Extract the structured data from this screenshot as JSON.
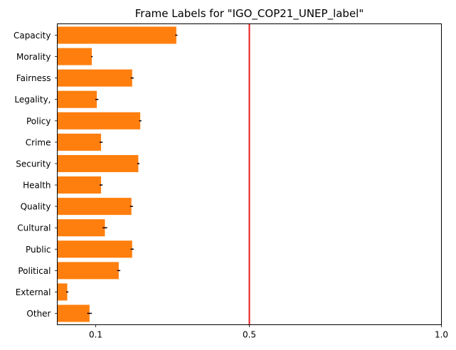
{
  "chart_data": {
    "type": "bar",
    "orientation": "horizontal",
    "title": "Frame Labels for \"IGO_COP21_UNEP_label\"",
    "xlabel": "",
    "ylabel": "",
    "xlim": [
      0.0,
      1.0
    ],
    "xticks": [
      {
        "value": 0.1,
        "label": "0.1"
      },
      {
        "value": 0.5,
        "label": "0.5"
      },
      {
        "value": 1.0,
        "label": "1.0"
      }
    ],
    "categories": [
      "Capacity",
      "Morality",
      "Fairness",
      "Legality,",
      "Policy",
      "Crime",
      "Security",
      "Health",
      "Quality",
      "Cultural",
      "Public",
      "Political",
      "External",
      "Other"
    ],
    "values": [
      0.31,
      0.09,
      0.195,
      0.103,
      0.216,
      0.114,
      0.211,
      0.114,
      0.193,
      0.124,
      0.195,
      0.16,
      0.026,
      0.084
    ],
    "errors": [
      0.003,
      0.002,
      0.004,
      0.004,
      0.003,
      0.004,
      0.003,
      0.004,
      0.004,
      0.006,
      0.004,
      0.004,
      0.003,
      0.006
    ],
    "bar_color": "#ff7f0e",
    "reference_line": {
      "value": 0.5,
      "color": "#e41a1c"
    },
    "grid": false,
    "legend": "none"
  }
}
